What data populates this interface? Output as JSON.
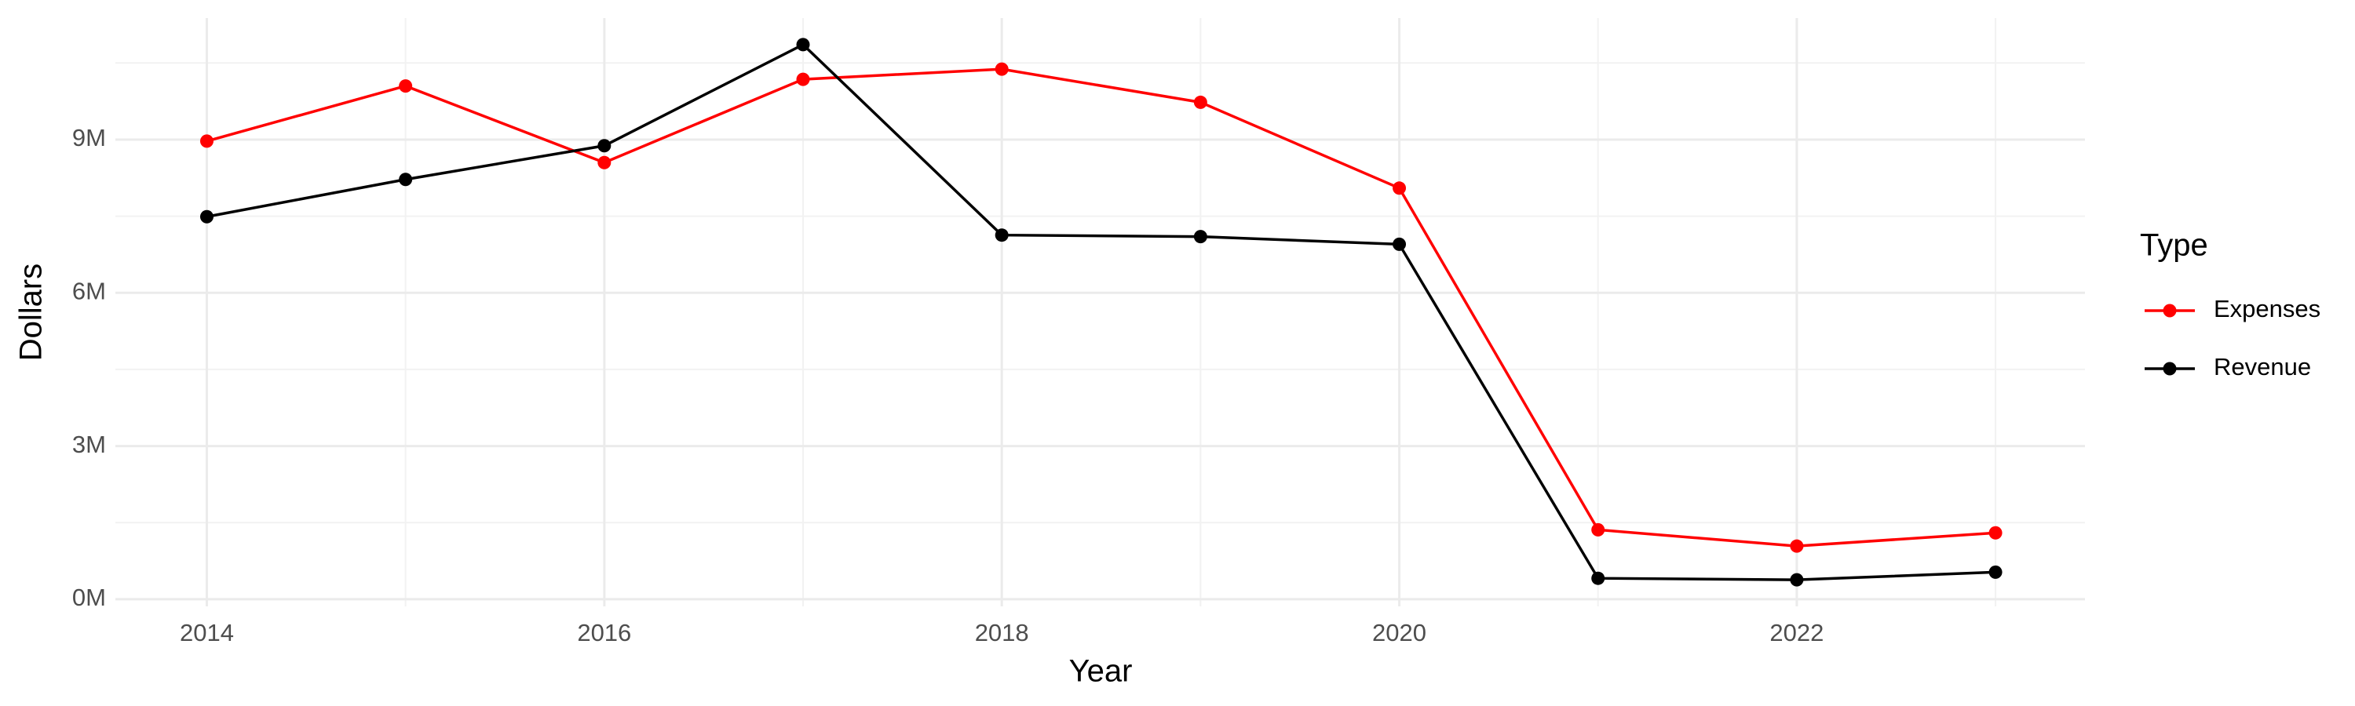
{
  "chart_data": {
    "type": "line",
    "x_label": "Year",
    "y_label": "Dollars",
    "legend_title": "Type",
    "legend_position": "right",
    "x": [
      2014,
      2015,
      2016,
      2017,
      2018,
      2019,
      2020,
      2021,
      2022,
      2023
    ],
    "series": [
      {
        "name": "Expenses",
        "color": "#ff0000",
        "values": [
          8970000,
          10050000,
          8550000,
          10180000,
          10380000,
          9730000,
          8050000,
          1360000,
          1040000,
          1300000
        ]
      },
      {
        "name": "Revenue",
        "color": "#000000",
        "values": [
          7490000,
          8220000,
          8880000,
          10860000,
          7130000,
          7100000,
          6950000,
          410000,
          380000,
          530000
        ]
      }
    ],
    "xlim": [
      2013.54,
      2023.45
    ],
    "xticks": [
      2014,
      2016,
      2018,
      2020,
      2022
    ],
    "ylim": [
      -140000,
      11380000
    ],
    "yticks": [
      {
        "value": 0,
        "label": "0M"
      },
      {
        "value": 3000000,
        "label": "3M"
      },
      {
        "value": 6000000,
        "label": "6M"
      },
      {
        "value": 9000000,
        "label": "9M"
      }
    ],
    "grid": true
  }
}
